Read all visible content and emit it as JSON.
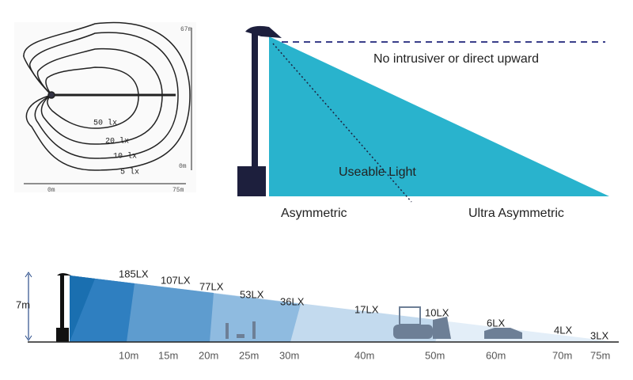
{
  "isolux_diagram": {
    "axis_labels": [
      "67m",
      "0m",
      "0m",
      "75m"
    ],
    "contours": [
      "50 lx",
      "20 lx",
      "10 lx",
      "5 lx"
    ]
  },
  "beam_diagram": {
    "note": "No intrusiver or direct upward",
    "useable": "Useable Light",
    "labels": [
      "Asymmetric",
      "Ultra Asymmetric"
    ]
  },
  "illuminance_profile": {
    "height": "7m",
    "lux": [
      "185LX",
      "107LX",
      "77LX",
      "53LX",
      "36LX",
      "17LX",
      "10LX",
      "6LX",
      "4LX",
      "3LX"
    ],
    "distances": [
      "10m",
      "15m",
      "20m",
      "25m",
      "30m",
      "40m",
      "50m",
      "60m",
      "70m",
      "75m"
    ]
  }
}
